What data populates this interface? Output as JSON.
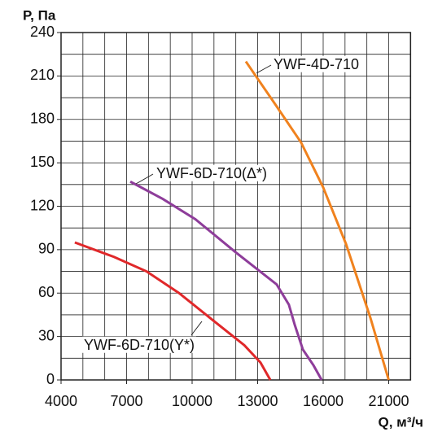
{
  "chart_data": {
    "type": "line",
    "y_label": "P, Па",
    "x_label": "Q, м³/ч",
    "xlim": [
      4000,
      21000
    ],
    "xticks": [
      4000,
      7000,
      10000,
      13000,
      16000,
      21000
    ],
    "ylim": [
      0,
      240
    ],
    "yticks": [
      0,
      30,
      60,
      90,
      120,
      150,
      180,
      210,
      240
    ],
    "grid": true,
    "series": [
      {
        "name": "YWF-4D-710",
        "color": "#f0821e",
        "x": [
          12460,
          13870,
          14990,
          16000,
          17740,
          19600,
          21000
        ],
        "values": [
          220,
          189,
          164,
          133,
          94,
          43,
          0
        ]
      },
      {
        "name": "YWF-6D-710(Δ*)",
        "color": "#8e3d9a",
        "x": [
          7170,
          8660,
          10150,
          12010,
          13870,
          14430,
          14700,
          15070,
          15560,
          15930
        ],
        "values": [
          137,
          125,
          111,
          88,
          66,
          52,
          38,
          21,
          10,
          0
        ]
      },
      {
        "name": "YWF-6D-710(Y*)",
        "color": "#e0282a",
        "x": [
          4630,
          6420,
          7910,
          9400,
          10890,
          12390,
          13130,
          13580
        ],
        "values": [
          95,
          85,
          75,
          60,
          42,
          24,
          12,
          0
        ]
      }
    ]
  }
}
